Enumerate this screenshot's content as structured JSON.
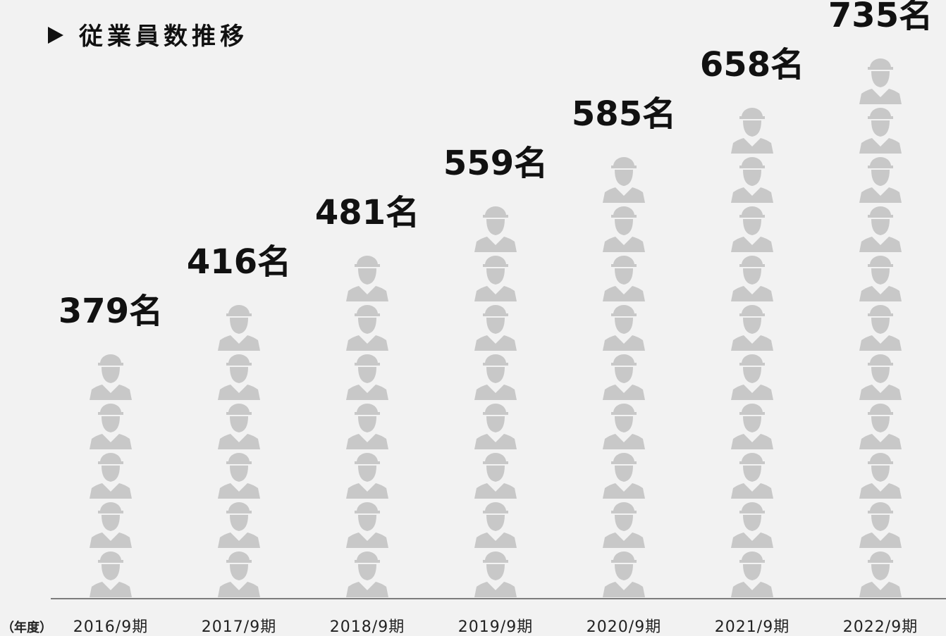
{
  "chart_data": {
    "type": "pictogram",
    "title": "従業員数推移",
    "categories": [
      "2016/9期",
      "2017/9期",
      "2018/9期",
      "2019/9期",
      "2020/9期",
      "2021/9期",
      "2022/9期"
    ],
    "values": [
      379,
      416,
      481,
      559,
      585,
      658,
      735
    ],
    "value_labels": [
      "379名",
      "416名",
      "481名",
      "559名",
      "585名",
      "658名",
      "735名"
    ],
    "icon_counts": [
      5,
      6,
      7,
      8,
      9,
      10,
      11
    ],
    "x_label": "（年度）",
    "color": "#c8c8c8"
  }
}
